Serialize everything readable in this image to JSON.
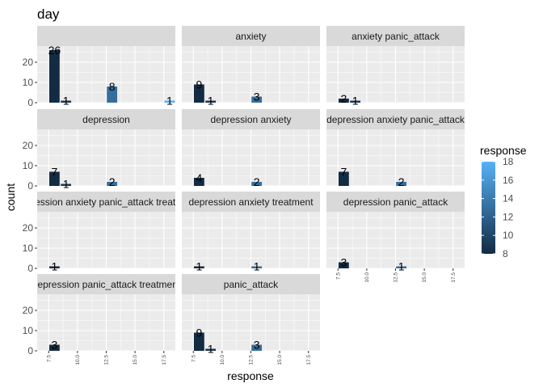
{
  "chart_data": {
    "type": "bar",
    "title": "day",
    "xlabel": "response",
    "ylabel": "count",
    "xlim": [
      6.5,
      18.5
    ],
    "ylim": [
      0,
      28
    ],
    "x_ticks": [
      "7.5",
      "10.0",
      "12.5",
      "15.0",
      "17.5"
    ],
    "y_ticks": [
      "0",
      "10",
      "20"
    ],
    "grid": true,
    "facets": [
      {
        "label": "",
        "bars": [
          {
            "x": 8,
            "count": 26
          },
          {
            "x": 9,
            "count": 1
          },
          {
            "x": 13,
            "count": 8
          },
          {
            "x": 18,
            "count": 1
          }
        ]
      },
      {
        "label": "anxiety",
        "bars": [
          {
            "x": 8,
            "count": 9
          },
          {
            "x": 9,
            "count": 1
          },
          {
            "x": 13,
            "count": 3
          }
        ]
      },
      {
        "label": "anxiety panic_attack",
        "bars": [
          {
            "x": 8,
            "count": 2
          },
          {
            "x": 9,
            "count": 1
          }
        ]
      },
      {
        "label": "depression",
        "bars": [
          {
            "x": 8,
            "count": 7
          },
          {
            "x": 9,
            "count": 1
          },
          {
            "x": 13,
            "count": 2
          }
        ]
      },
      {
        "label": "depression anxiety",
        "bars": [
          {
            "x": 8,
            "count": 4
          },
          {
            "x": 13,
            "count": 2
          }
        ]
      },
      {
        "label": "depression anxiety panic_attack",
        "bars": [
          {
            "x": 8,
            "count": 7
          },
          {
            "x": 13,
            "count": 2
          }
        ]
      },
      {
        "label": "depression anxiety panic_attack treatment",
        "bars": [
          {
            "x": 8,
            "count": 1
          }
        ]
      },
      {
        "label": "depression anxiety treatment",
        "bars": [
          {
            "x": 8,
            "count": 1
          },
          {
            "x": 13,
            "count": 1
          }
        ]
      },
      {
        "label": "depression panic_attack",
        "bars": [
          {
            "x": 8,
            "count": 3
          },
          {
            "x": 13,
            "count": 1
          }
        ]
      },
      {
        "label": "depression panic_attack treatment",
        "bars": [
          {
            "x": 8,
            "count": 3
          }
        ]
      },
      {
        "label": "panic_attack",
        "bars": [
          {
            "x": 8,
            "count": 9
          },
          {
            "x": 9,
            "count": 1
          },
          {
            "x": 13,
            "count": 3
          }
        ]
      }
    ],
    "legend": {
      "title": "response",
      "position": "right",
      "ticks": [
        "8",
        "10",
        "12",
        "14",
        "16",
        "18"
      ],
      "range": [
        8,
        18
      ],
      "color_low": "#132b43",
      "color_high": "#56b1f7"
    }
  }
}
